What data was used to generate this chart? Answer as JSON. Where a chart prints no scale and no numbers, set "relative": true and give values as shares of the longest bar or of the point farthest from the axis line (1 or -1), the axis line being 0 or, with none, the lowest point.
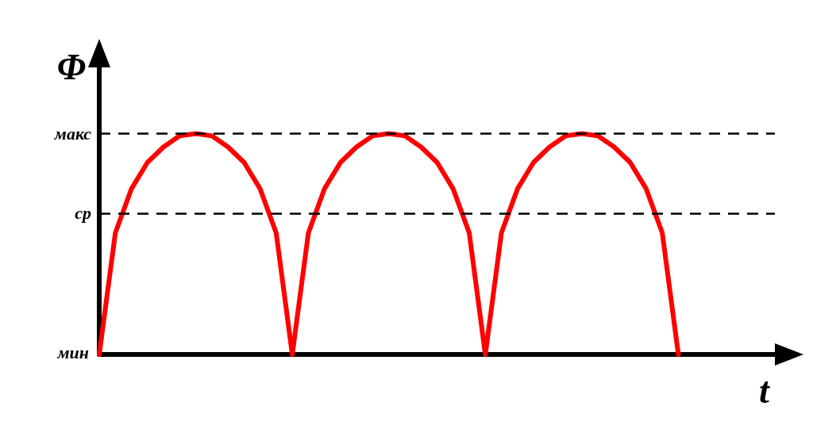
{
  "chart_data": {
    "type": "line",
    "relative": true,
    "xlabel": "t",
    "ylabel": "Φ",
    "categories": [
      null,
      null,
      null,
      null,
      null,
      null,
      null,
      null,
      null,
      null,
      null,
      null,
      null,
      null,
      null,
      null,
      null,
      null,
      null,
      null,
      null,
      null,
      null,
      null,
      null,
      null,
      null,
      null,
      null,
      null,
      null,
      null,
      null,
      null,
      null,
      null,
      null,
      null,
      null,
      null,
      null,
      null,
      null
    ],
    "series": [
      {
        "color": "#ff0000",
        "values": [
          0,
          0.55,
          0.75,
          0.87,
          0.94,
          0.99,
          1,
          0.99,
          0.94,
          0.87,
          0.75,
          0.55,
          0,
          0.55,
          0.75,
          0.87,
          0.94,
          0.99,
          1,
          0.99,
          0.94,
          0.87,
          0.75,
          0.55,
          0,
          0.55,
          0.75,
          0.87,
          0.94,
          0.99,
          1,
          0.99,
          0.94,
          0.87,
          0.75,
          0.55,
          0,
          null,
          null,
          null,
          null,
          null,
          null
        ]
      }
    ],
    "ref_lines": [
      {
        "axis": "y",
        "value": 1,
        "label": "макс",
        "color": "#000000",
        "line_style": "dashed"
      },
      {
        "axis": "y",
        "value": 0.64,
        "label": "ср",
        "color": "#000000",
        "line_style": "dashed"
      }
    ],
    "annotations": [
      "мин"
    ],
    "marker": "none",
    "line_style": "solid",
    "grid": false
  }
}
